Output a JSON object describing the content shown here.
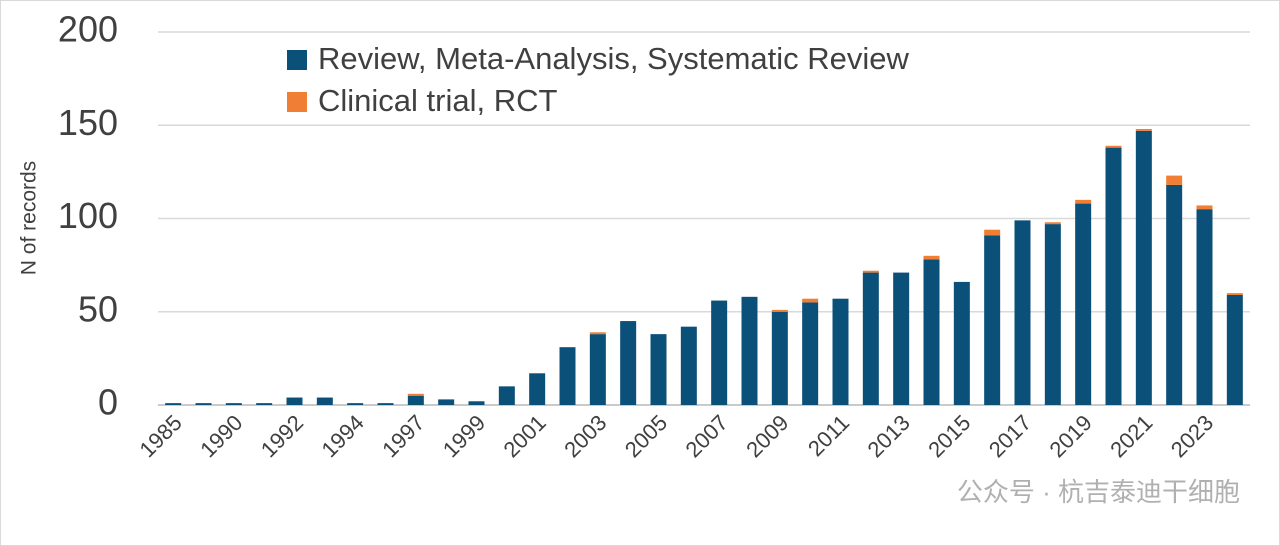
{
  "chart_data": {
    "type": "stacked-bar",
    "y_label": "N of records",
    "categories": [
      "1985",
      null,
      "1990",
      null,
      "1992",
      null,
      "1994",
      null,
      "1997",
      null,
      "1999",
      null,
      "2001",
      null,
      "2003",
      null,
      "2005",
      null,
      "2007",
      null,
      "2009",
      null,
      "2011",
      null,
      "2013",
      null,
      "2015",
      null,
      "2017",
      null,
      "2019",
      null,
      "2021",
      null,
      "2023",
      null
    ],
    "series": [
      {
        "name": "Review, Meta-Analysis, Systematic Review",
        "color": "#0b5079",
        "values": [
          1,
          1,
          1,
          1,
          4,
          4,
          1,
          1,
          5,
          3,
          2,
          10,
          17,
          31,
          38,
          45,
          38,
          42,
          56,
          58,
          50,
          55,
          57,
          71,
          71,
          78,
          66,
          91,
          99,
          97,
          108,
          138,
          147,
          118,
          105,
          59
        ]
      },
      {
        "name": "Clinical trial, RCT",
        "color": "#f07f35",
        "values": [
          0,
          0,
          0,
          0,
          0,
          0,
          0,
          0,
          1,
          0,
          0,
          0,
          0,
          0,
          1,
          0,
          0,
          0,
          0,
          0,
          1,
          2,
          0,
          1,
          0,
          2,
          0,
          3,
          0,
          1,
          2,
          1,
          1,
          5,
          2,
          1
        ]
      }
    ],
    "ylim": [
      0,
      200
    ],
    "yticks": [
      0,
      50,
      100,
      150,
      200
    ],
    "grid": true,
    "legend": "top-left",
    "watermark": "公众号 · 杭吉泰迪干细胞"
  }
}
